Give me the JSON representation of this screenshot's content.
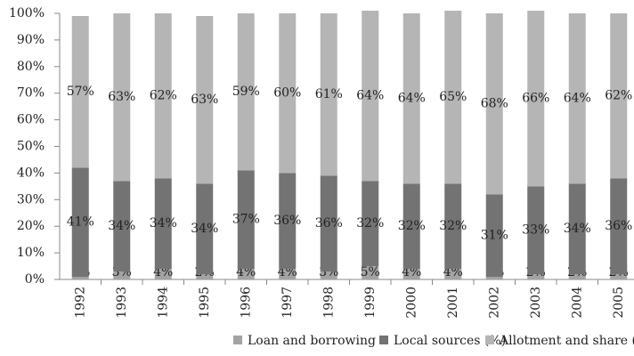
{
  "chart_data": {
    "type": "stacked_bar",
    "categories": [
      "1992",
      "1993",
      "1994",
      "1995",
      "1996",
      "1997",
      "1998",
      "1999",
      "2000",
      "2001",
      "2002",
      "2003",
      "2004",
      "2005"
    ],
    "series": [
      {
        "name": "Loan and borrowing",
        "color": "#a3a3a3",
        "values": [
          1,
          3,
          4,
          2,
          4,
          4,
          3,
          5,
          4,
          4,
          1,
          2,
          2,
          2
        ],
        "value_labels": [
          "1%",
          "3%",
          "4%",
          "2%",
          "4%",
          "4%",
          "3%",
          "5%",
          "4%",
          "4%",
          "1%",
          "2%",
          "2%",
          "2%"
        ]
      },
      {
        "name": "Local sources (%)",
        "color": "#737373",
        "values": [
          41,
          34,
          34,
          34,
          37,
          36,
          36,
          32,
          32,
          32,
          31,
          33,
          34,
          36
        ],
        "value_labels": [
          "41%",
          "34%",
          "34%",
          "34%",
          "37%",
          "36%",
          "36%",
          "32%",
          "32%",
          "32%",
          "31%",
          "33%",
          "34%",
          "36%"
        ]
      },
      {
        "name": "Allotment and share (%)",
        "color": "#b5b5b5",
        "values": [
          57,
          63,
          62,
          63,
          59,
          60,
          61,
          64,
          64,
          65,
          68,
          66,
          64,
          62
        ],
        "value_labels": [
          "57%",
          "63%",
          "62%",
          "63%",
          "59%",
          "60%",
          "61%",
          "64%",
          "64%",
          "65%",
          "68%",
          "66%",
          "64%",
          "62%"
        ]
      }
    ],
    "ylim": [
      0,
      100
    ],
    "yticks": [
      {
        "value": 0,
        "label": "0%"
      },
      {
        "value": 10,
        "label": "10%"
      },
      {
        "value": 20,
        "label": "20%"
      },
      {
        "value": 30,
        "label": "30%"
      },
      {
        "value": 40,
        "label": "40%"
      },
      {
        "value": 50,
        "label": "50%"
      },
      {
        "value": 60,
        "label": "60%"
      },
      {
        "value": 70,
        "label": "70%"
      },
      {
        "value": 80,
        "label": "80%"
      },
      {
        "value": 90,
        "label": "90%"
      },
      {
        "value": 100,
        "label": "100%"
      }
    ],
    "grid": false,
    "legend": "bottom"
  }
}
